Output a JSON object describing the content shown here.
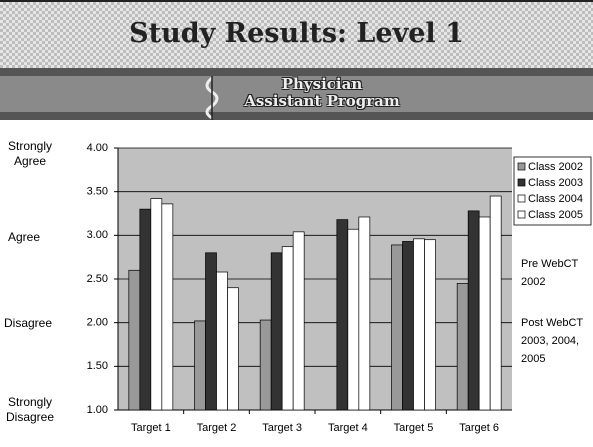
{
  "header": {
    "title": "Study Results: Level 1",
    "logo_lines": [
      "Physician",
      "Assistant Program"
    ]
  },
  "chart_data": {
    "type": "bar",
    "categories": [
      "Target 1",
      "Target 2",
      "Target 3",
      "Target 4",
      "Target 5",
      "Target 6"
    ],
    "series": [
      {
        "name": "Class 2002",
        "color": "#999999",
        "values": [
          2.6,
          2.02,
          2.03,
          null,
          2.89,
          2.45
        ]
      },
      {
        "name": "Class 2003",
        "color": "#333333",
        "values": [
          3.3,
          2.8,
          2.8,
          3.18,
          2.93,
          3.28
        ]
      },
      {
        "name": "Class 2004",
        "color": "#ffffff",
        "values": [
          3.42,
          2.58,
          2.87,
          3.07,
          2.96,
          3.21
        ]
      },
      {
        "name": "Class 2005",
        "color": "#ffffff",
        "values": [
          3.36,
          2.4,
          3.04,
          3.21,
          2.95,
          3.45
        ]
      }
    ],
    "ylim": [
      1,
      4
    ],
    "yticks": [
      {
        "value": 1,
        "label": "1.00"
      },
      {
        "value": 1.5,
        "label": "1.50"
      },
      {
        "value": 2,
        "label": "2.00"
      },
      {
        "value": 2.5,
        "label": "2.50"
      },
      {
        "value": 3,
        "label": "3.00"
      },
      {
        "value": 3.5,
        "label": "3.50"
      },
      {
        "value": 4,
        "label": "4.00"
      }
    ],
    "grid": true,
    "legend": "right",
    "y_annotations": [
      "Strongly Agree",
      "Agree",
      "Disagree",
      "Strongly Disagree"
    ],
    "right_annotations": [
      "Pre WebCT 2002",
      "Post WebCT 2003, 2004, 2005"
    ]
  }
}
